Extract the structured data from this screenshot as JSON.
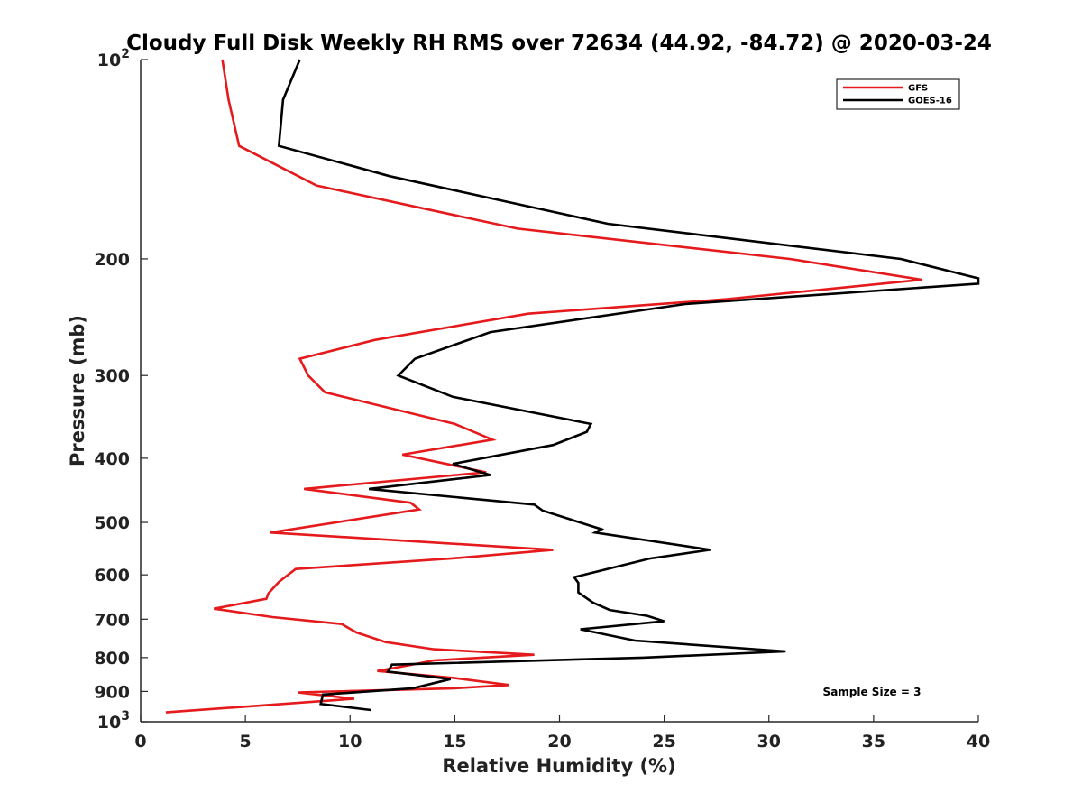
{
  "chart_data": {
    "type": "line",
    "title": "Cloudy Full Disk Weekly RH RMS over 72634 (44.92, -84.72) @ 2020-03-24",
    "xlabel": "Relative Humidity (%)",
    "ylabel": "Pressure (mb)",
    "xlim": [
      0,
      40
    ],
    "ylim": [
      100,
      1000
    ],
    "y_scale": "log",
    "y_inverted": true,
    "grid": false,
    "legend_position": "top-right",
    "x_ticks": [
      {
        "value": 0,
        "label": "0"
      },
      {
        "value": 5,
        "label": "5"
      },
      {
        "value": 10,
        "label": "10"
      },
      {
        "value": 15,
        "label": "15"
      },
      {
        "value": 20,
        "label": "20"
      },
      {
        "value": 25,
        "label": "25"
      },
      {
        "value": 30,
        "label": "30"
      },
      {
        "value": 35,
        "label": "35"
      },
      {
        "value": 40,
        "label": "40"
      }
    ],
    "y_ticks": [
      {
        "value": 100,
        "label": "10",
        "sup": "2"
      },
      {
        "value": 200,
        "label": "200",
        "sup": ""
      },
      {
        "value": 300,
        "label": "300",
        "sup": ""
      },
      {
        "value": 400,
        "label": "400",
        "sup": ""
      },
      {
        "value": 500,
        "label": "500",
        "sup": ""
      },
      {
        "value": 600,
        "label": "600",
        "sup": ""
      },
      {
        "value": 700,
        "label": "700",
        "sup": ""
      },
      {
        "value": 800,
        "label": "800",
        "sup": ""
      },
      {
        "value": 900,
        "label": "900",
        "sup": ""
      },
      {
        "value": 1000,
        "label": "10",
        "sup": "3"
      }
    ],
    "annotation": "Sample Size = 3",
    "series": [
      {
        "name": "GFS",
        "color": "#e41a1c",
        "points": [
          [
            3.9,
            100
          ],
          [
            4.2,
            115
          ],
          [
            4.7,
            135
          ],
          [
            8.4,
            155
          ],
          [
            18.0,
            180
          ],
          [
            31.0,
            200
          ],
          [
            37.3,
            215
          ],
          [
            28.0,
            230
          ],
          [
            18.5,
            242
          ],
          [
            11.2,
            265
          ],
          [
            7.6,
            283
          ],
          [
            8.0,
            300
          ],
          [
            8.8,
            318
          ],
          [
            15.0,
            355
          ],
          [
            16.8,
            375
          ],
          [
            12.5,
            395
          ],
          [
            16.5,
            420
          ],
          [
            7.8,
            445
          ],
          [
            12.9,
            467
          ],
          [
            13.3,
            478
          ],
          [
            6.2,
            518
          ],
          [
            19.7,
            550
          ],
          [
            14.8,
            567
          ],
          [
            7.4,
            588
          ],
          [
            6.6,
            615
          ],
          [
            6.1,
            640
          ],
          [
            6.0,
            652
          ],
          [
            3.5,
            675
          ],
          [
            6.3,
            695
          ],
          [
            9.6,
            712
          ],
          [
            10.3,
            733
          ],
          [
            11.7,
            758
          ],
          [
            14.0,
            777
          ],
          [
            18.8,
            792
          ],
          [
            14.0,
            808
          ],
          [
            12.7,
            823
          ],
          [
            11.3,
            838
          ],
          [
            15.0,
            859
          ],
          [
            17.6,
            880
          ],
          [
            15.0,
            890
          ],
          [
            7.5,
            903
          ],
          [
            10.2,
            923
          ],
          [
            1.2,
            968
          ]
        ]
      },
      {
        "name": "GOES-16",
        "color": "#000000",
        "points": [
          [
            7.6,
            100
          ],
          [
            6.8,
            115
          ],
          [
            6.6,
            135
          ],
          [
            11.9,
            150
          ],
          [
            22.3,
            177
          ],
          [
            36.3,
            200
          ],
          [
            40.0,
            214
          ],
          [
            40.0,
            218
          ],
          [
            26.0,
            234
          ],
          [
            16.7,
            258
          ],
          [
            13.1,
            283
          ],
          [
            12.3,
            300
          ],
          [
            14.9,
            323
          ],
          [
            21.5,
            355
          ],
          [
            21.3,
            365
          ],
          [
            19.7,
            382
          ],
          [
            14.9,
            408
          ],
          [
            16.7,
            424
          ],
          [
            10.9,
            445
          ],
          [
            18.8,
            470
          ],
          [
            19.2,
            480
          ],
          [
            22.0,
            512
          ],
          [
            21.7,
            518
          ],
          [
            27.2,
            550
          ],
          [
            24.3,
            567
          ],
          [
            20.7,
            605
          ],
          [
            20.9,
            617
          ],
          [
            20.9,
            638
          ],
          [
            21.6,
            661
          ],
          [
            22.4,
            678
          ],
          [
            24.2,
            692
          ],
          [
            25.0,
            705
          ],
          [
            21.0,
            725
          ],
          [
            23.6,
            754
          ],
          [
            30.8,
            783
          ],
          [
            24.0,
            800
          ],
          [
            12.0,
            820
          ],
          [
            11.8,
            840
          ],
          [
            14.8,
            862
          ],
          [
            13.0,
            890
          ],
          [
            8.7,
            910
          ],
          [
            8.6,
            940
          ],
          [
            11.0,
            960
          ]
        ]
      }
    ]
  }
}
